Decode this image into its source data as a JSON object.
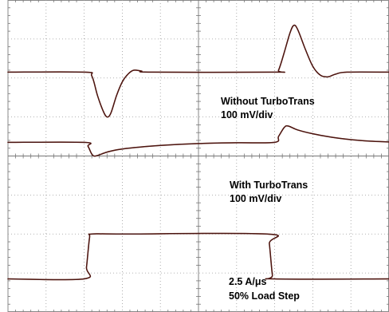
{
  "chart_data": {
    "type": "line",
    "title": "",
    "xlabel": "",
    "ylabel": "",
    "grid": true,
    "grid_divisions": {
      "x": 10,
      "y": 8
    },
    "trace_color": "#4a1410",
    "trace_highlight": "#c0603a",
    "series": [
      {
        "key": "without",
        "label_lines": [
          "Without TurboTrans",
          "100 mV/div"
        ],
        "baseline_div": 1.85,
        "points": [
          [
            0,
            0
          ],
          [
            2.0,
            0
          ],
          [
            2.2,
            -0.1
          ],
          [
            2.35,
            -0.6
          ],
          [
            2.5,
            -1.0
          ],
          [
            2.6,
            -1.15
          ],
          [
            2.7,
            -1.05
          ],
          [
            2.85,
            -0.6
          ],
          [
            3.0,
            -0.25
          ],
          [
            3.15,
            -0.05
          ],
          [
            3.3,
            0.05
          ],
          [
            3.5,
            0.03
          ],
          [
            3.8,
            0
          ],
          [
            7.0,
            0
          ],
          [
            7.1,
            0.05
          ],
          [
            7.25,
            0.5
          ],
          [
            7.4,
            1.0
          ],
          [
            7.5,
            1.2
          ],
          [
            7.6,
            1.1
          ],
          [
            7.8,
            0.6
          ],
          [
            8.0,
            0.15
          ],
          [
            8.2,
            -0.08
          ],
          [
            8.4,
            -0.12
          ],
          [
            8.6,
            -0.05
          ],
          [
            8.9,
            0
          ],
          [
            10,
            0
          ]
        ]
      },
      {
        "key": "with",
        "label_lines": [
          "With TurboTrans",
          "100 mV/div"
        ],
        "baseline_div": 3.65,
        "points": [
          [
            0,
            0
          ],
          [
            2.0,
            0
          ],
          [
            2.1,
            -0.1
          ],
          [
            2.2,
            -0.3
          ],
          [
            2.3,
            -0.35
          ],
          [
            2.6,
            -0.25
          ],
          [
            3.0,
            -0.17
          ],
          [
            4.0,
            -0.08
          ],
          [
            5.0,
            -0.03
          ],
          [
            6.0,
            -0.01
          ],
          [
            7.0,
            0
          ],
          [
            7.1,
            0.15
          ],
          [
            7.25,
            0.38
          ],
          [
            7.35,
            0.42
          ],
          [
            7.6,
            0.32
          ],
          [
            8.0,
            0.22
          ],
          [
            8.5,
            0.13
          ],
          [
            9.0,
            0.07
          ],
          [
            9.5,
            0.03
          ],
          [
            10,
            0.01
          ]
        ]
      },
      {
        "key": "load",
        "label_lines": [
          "2.5 A/μs",
          "50% Load Step"
        ],
        "baseline_div": 7.15,
        "points": [
          [
            0,
            0
          ],
          [
            2.0,
            0
          ],
          [
            2.06,
            0.3
          ],
          [
            2.14,
            1.05
          ],
          [
            2.2,
            1.15
          ],
          [
            3.0,
            1.15
          ],
          [
            6.8,
            1.15
          ],
          [
            6.86,
            0.9
          ],
          [
            6.94,
            0.1
          ],
          [
            7.0,
            0
          ],
          [
            10,
            0
          ]
        ]
      }
    ],
    "labels": [
      {
        "series": "without",
        "lines": [
          "Without TurboTrans",
          "100 mV/div"
        ]
      },
      {
        "series": "with",
        "lines": [
          "With TurboTrans",
          "100 mV/div"
        ]
      },
      {
        "series": "load",
        "lines": [
          "2.5 A/μs",
          "50% Load Step"
        ]
      }
    ]
  }
}
